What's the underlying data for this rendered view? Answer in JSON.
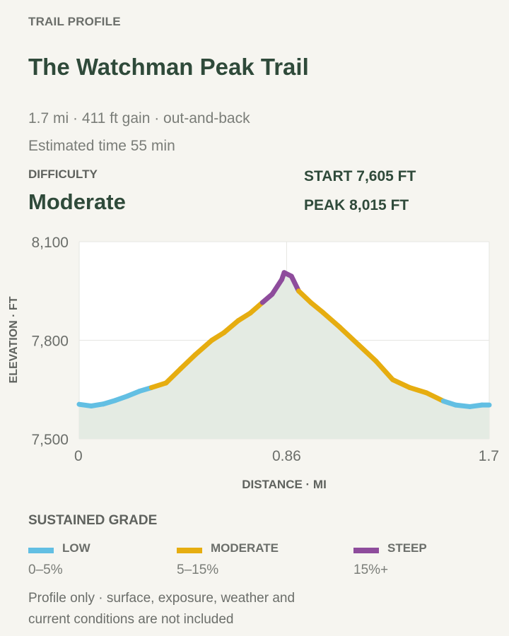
{
  "header": {
    "eyebrow": "TRAIL PROFILE",
    "title": "The Watchman Peak Trail",
    "meta_line1": "1.7 mi · 411 ft gain · out-and-back",
    "meta_line2": "Estimated time 55 min"
  },
  "difficulty": {
    "label": "DIFFICULTY",
    "value": "Moderate"
  },
  "stats": {
    "start": "START 7,605 FT",
    "peak": "PEAK 8,015 FT"
  },
  "chart_data": {
    "type": "area",
    "ylabel": "ELEVATION · FT",
    "xlabel": "DISTANCE · MI",
    "xlim": [
      0,
      1.7
    ],
    "ylim": [
      7500,
      8100
    ],
    "x_ticks": [
      0,
      0.86,
      1.7
    ],
    "x_tick_labels": [
      "0",
      "0.86",
      "1.7"
    ],
    "y_ticks": [
      7500,
      7800,
      8100
    ],
    "y_tick_labels": [
      "7,500",
      "7,800",
      "8,100"
    ],
    "grid": true,
    "fill_color": "#e4ebe3",
    "grade_colors": {
      "low": "#62bfe3",
      "moderate": "#e6ad10",
      "steep": "#8e4c9c"
    },
    "points": [
      {
        "x": 0.0,
        "y": 7605,
        "grade": "low"
      },
      {
        "x": 0.05,
        "y": 7600,
        "grade": "low"
      },
      {
        "x": 0.1,
        "y": 7606,
        "grade": "low"
      },
      {
        "x": 0.15,
        "y": 7617,
        "grade": "low"
      },
      {
        "x": 0.2,
        "y": 7630,
        "grade": "low"
      },
      {
        "x": 0.25,
        "y": 7645,
        "grade": "low"
      },
      {
        "x": 0.3,
        "y": 7656,
        "grade": "low"
      },
      {
        "x": 0.36,
        "y": 7670,
        "grade": "moderate"
      },
      {
        "x": 0.42,
        "y": 7713,
        "grade": "moderate"
      },
      {
        "x": 0.48,
        "y": 7755,
        "grade": "moderate"
      },
      {
        "x": 0.55,
        "y": 7800,
        "grade": "moderate"
      },
      {
        "x": 0.6,
        "y": 7823,
        "grade": "moderate"
      },
      {
        "x": 0.66,
        "y": 7860,
        "grade": "moderate"
      },
      {
        "x": 0.71,
        "y": 7883,
        "grade": "moderate"
      },
      {
        "x": 0.76,
        "y": 7915,
        "grade": "moderate"
      },
      {
        "x": 0.8,
        "y": 7940,
        "grade": "steep"
      },
      {
        "x": 0.84,
        "y": 7985,
        "grade": "steep"
      },
      {
        "x": 0.85,
        "y": 8006,
        "grade": "steep"
      },
      {
        "x": 0.88,
        "y": 7995,
        "grade": "steep"
      },
      {
        "x": 0.91,
        "y": 7950,
        "grade": "steep"
      },
      {
        "x": 0.96,
        "y": 7915,
        "grade": "moderate"
      },
      {
        "x": 1.01,
        "y": 7885,
        "grade": "moderate"
      },
      {
        "x": 1.08,
        "y": 7840,
        "grade": "moderate"
      },
      {
        "x": 1.16,
        "y": 7785,
        "grade": "moderate"
      },
      {
        "x": 1.23,
        "y": 7737,
        "grade": "moderate"
      },
      {
        "x": 1.3,
        "y": 7680,
        "grade": "moderate"
      },
      {
        "x": 1.37,
        "y": 7656,
        "grade": "moderate"
      },
      {
        "x": 1.44,
        "y": 7640,
        "grade": "moderate"
      },
      {
        "x": 1.51,
        "y": 7615,
        "grade": "moderate"
      },
      {
        "x": 1.56,
        "y": 7603,
        "grade": "low"
      },
      {
        "x": 1.62,
        "y": 7598,
        "grade": "low"
      },
      {
        "x": 1.67,
        "y": 7603,
        "grade": "low"
      },
      {
        "x": 1.7,
        "y": 7603,
        "grade": "low"
      }
    ]
  },
  "legend": {
    "title": "SUSTAINED GRADE",
    "items": [
      {
        "name": "LOW",
        "range": "0–5%",
        "color": "#62bfe3"
      },
      {
        "name": "MODERATE",
        "range": "5–15%",
        "color": "#e6ad10"
      },
      {
        "name": "STEEP",
        "range": "15%+",
        "color": "#8e4c9c"
      }
    ]
  },
  "footnote": "Profile only · surface, exposure, weather and current conditions are not included"
}
